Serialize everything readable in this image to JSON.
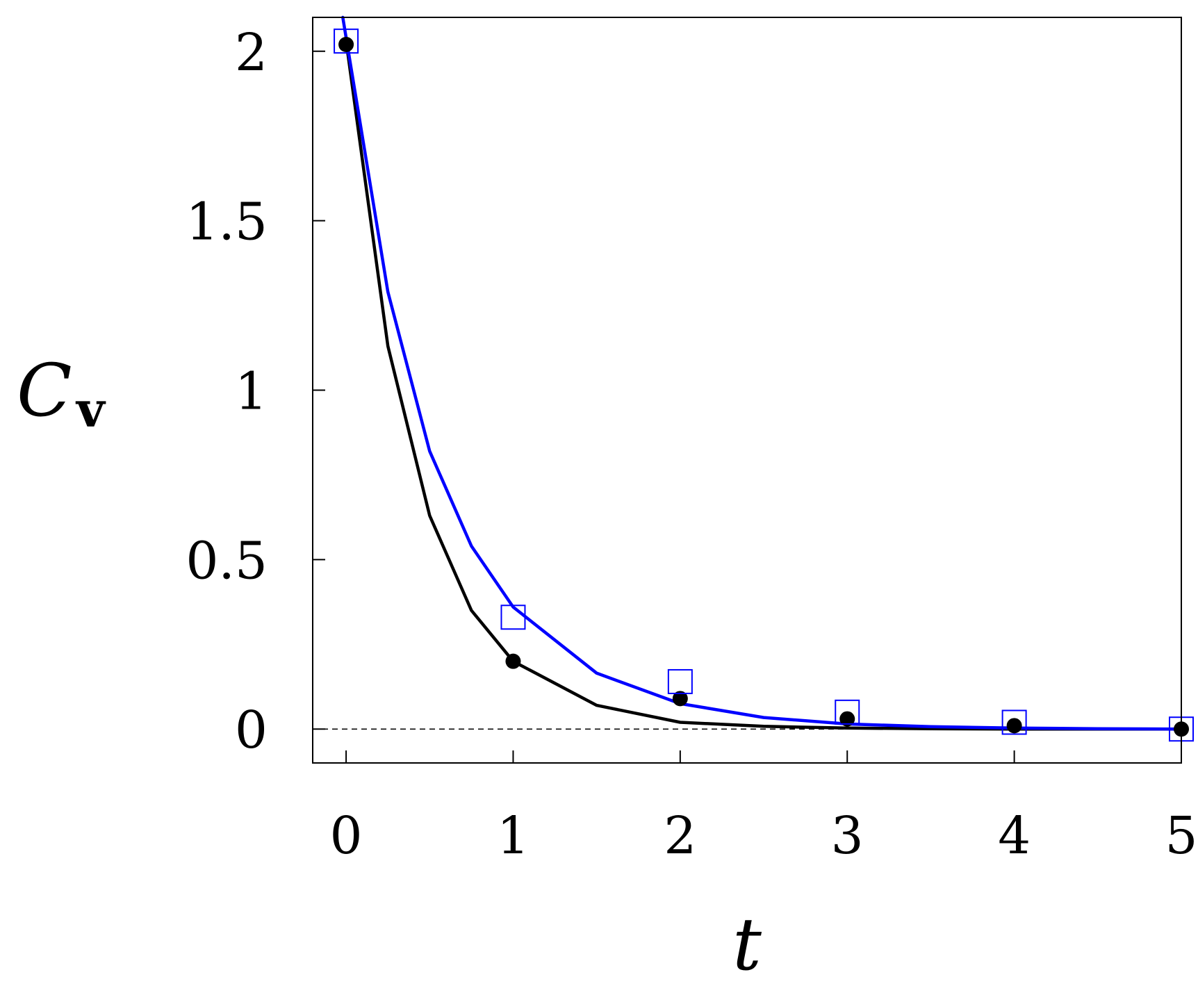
{
  "chart_data": {
    "type": "line",
    "title": "",
    "xlabel": "t",
    "ylabel_main": "C",
    "ylabel_sub": "v",
    "xlim": [
      -0.2,
      5.0
    ],
    "ylim": [
      -0.1,
      2.1
    ],
    "xticks": [
      0,
      1,
      2,
      3,
      4,
      5
    ],
    "yticks": [
      0,
      0.5,
      1,
      1.5,
      2
    ],
    "xtick_labels": [
      "0",
      "1",
      "2",
      "3",
      "4",
      "5"
    ],
    "ytick_labels": [
      "0",
      "0.5",
      "1",
      "1.5",
      "2"
    ],
    "grid": false,
    "reference_line": {
      "y": 0,
      "style": "dashed",
      "color": "#000000"
    },
    "series": [
      {
        "marker": "circle",
        "color": "#000000",
        "points": {
          "x": [
            0,
            1,
            2,
            3,
            4,
            5
          ],
          "y": [
            2.02,
            0.2,
            0.09,
            0.03,
            0.01,
            0.0
          ]
        },
        "curve": {
          "x": [
            0,
            0.25,
            0.5,
            0.75,
            1,
            1.5,
            2,
            2.5,
            3,
            3.5,
            4,
            4.5,
            5
          ],
          "y": [
            2.03,
            1.13,
            0.63,
            0.35,
            0.2,
            0.07,
            0.02,
            0.008,
            0.003,
            0.001,
            0.0,
            0.0,
            0.0
          ]
        }
      },
      {
        "marker": "square",
        "color": "#0000ff",
        "points": {
          "x": [
            0,
            1,
            2,
            3,
            4,
            5
          ],
          "y": [
            2.03,
            0.33,
            0.14,
            0.05,
            0.02,
            0.0
          ]
        },
        "curve": {
          "x": [
            -0.02,
            0.25,
            0.5,
            0.75,
            1,
            1.5,
            2,
            2.5,
            3,
            3.5,
            4,
            4.5,
            5
          ],
          "y": [
            2.1,
            1.29,
            0.82,
            0.54,
            0.36,
            0.165,
            0.075,
            0.034,
            0.015,
            0.007,
            0.003,
            0.001,
            0.0
          ]
        }
      }
    ]
  }
}
